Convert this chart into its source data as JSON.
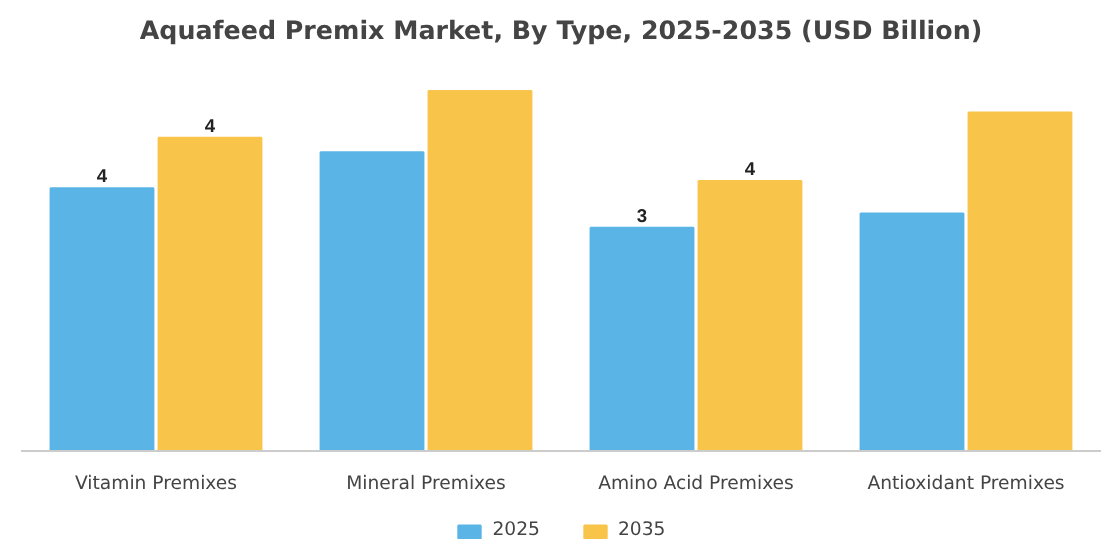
{
  "chart_data": {
    "type": "bar",
    "title": "Aquafeed Premix Market, By Type, 2025-2035 (USD Billion)",
    "categories": [
      "Vitamin Premixes",
      "Mineral Premixes",
      "Amino Acid Premixes",
      "Antioxidant Premixes"
    ],
    "legend": "bottom",
    "grid": false,
    "tick_labels": "x",
    "series": [
      {
        "name": "2025",
        "color": "#5ab4e5",
        "values": [
          3.65,
          4.15,
          3.1,
          3.3
        ],
        "value_labels": [
          "4",
          null,
          "3",
          null
        ]
      },
      {
        "name": "2035",
        "color": "#f9c44a",
        "values": [
          4.35,
          5.0,
          3.75,
          4.7
        ],
        "value_labels": [
          "4",
          null,
          "4",
          null
        ]
      }
    ]
  }
}
